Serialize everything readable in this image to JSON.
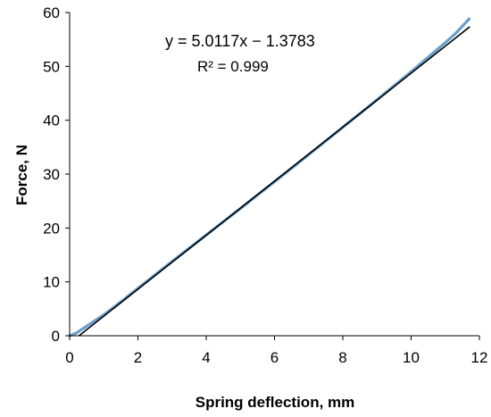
{
  "chart_data": {
    "type": "scatter",
    "xlabel": "Spring deflection, mm",
    "ylabel": "Force, N",
    "xlim": [
      0,
      12
    ],
    "ylim": [
      0,
      60
    ],
    "xticks": [
      "0",
      "2",
      "4",
      "6",
      "8",
      "10",
      "12"
    ],
    "yticks": [
      "0",
      "10",
      "20",
      "30",
      "40",
      "50",
      "60"
    ],
    "grid": false,
    "legend": "none",
    "annotations": {
      "equation": "y = 5.0117x − 1.3783",
      "r_squared": "R² = 0.999"
    },
    "series": [
      {
        "kind": "measured",
        "color": "#6a9fcc",
        "x": [
          0,
          0.2,
          0.5,
          1,
          1.5,
          2,
          3,
          4,
          5,
          6,
          7,
          8,
          9,
          10,
          10.5,
          11,
          11.3,
          11.7
        ],
        "y": [
          0,
          0.5,
          1.8,
          3.9,
          6.3,
          8.8,
          13.8,
          18.7,
          23.6,
          28.6,
          33.6,
          38.7,
          43.8,
          49.0,
          51.7,
          54.4,
          56.1,
          58.8
        ]
      },
      {
        "kind": "linear-fit",
        "color": "#000000",
        "slope": 5.0117,
        "intercept": -1.3783,
        "x_range": [
          0.275,
          11.72
        ]
      }
    ]
  }
}
